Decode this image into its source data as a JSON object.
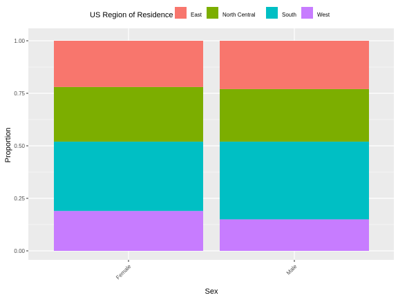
{
  "chart_data": {
    "type": "bar",
    "stacked": true,
    "categories": [
      "Female",
      "Male"
    ],
    "series": [
      {
        "name": "West",
        "color": "#C77CFF",
        "values": [
          0.19,
          0.15
        ]
      },
      {
        "name": "South",
        "color": "#00BFC4",
        "values": [
          0.33,
          0.37
        ]
      },
      {
        "name": "North Central",
        "color": "#7CAE00",
        "values": [
          0.26,
          0.25
        ]
      },
      {
        "name": "East",
        "color": "#F8766D",
        "values": [
          0.22,
          0.23
        ]
      }
    ],
    "xlabel": "Sex",
    "ylabel": "Proportion",
    "ylim": [
      0,
      1
    ],
    "yticks": [
      "0.00",
      "0.25",
      "0.50",
      "0.75",
      "1.00"
    ],
    "ytick_values": [
      0,
      0.25,
      0.5,
      0.75,
      1.0
    ],
    "legend": {
      "title": "US Region of Residence",
      "position": "top",
      "entries": [
        {
          "label": "East",
          "color": "#F8766D"
        },
        {
          "label": "North Central",
          "color": "#7CAE00"
        },
        {
          "label": "South",
          "color": "#00BFC4"
        },
        {
          "label": "West",
          "color": "#C77CFF"
        }
      ]
    },
    "panel_background": "#EBEBEB",
    "grid": true
  }
}
